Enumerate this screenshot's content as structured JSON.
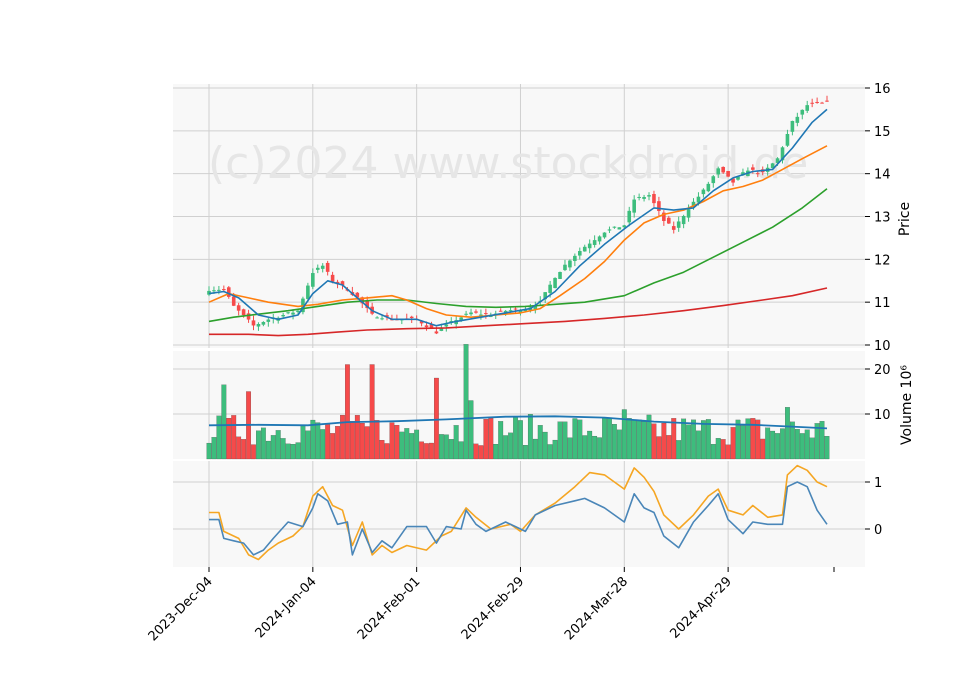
{
  "chart_data": {
    "type": "candlestick",
    "watermark": "(c)2024 www.stockdroid.de",
    "colors": {
      "up": "#3dbd7d",
      "down": "#f64a4a",
      "ma_fast": "#1f77b4",
      "ma_mid": "#ff7f0e",
      "ma_slow": "#2ca02c",
      "ma_long": "#d62728",
      "volume_ma": "#1f77b4",
      "osc_a": "#4a86b8",
      "osc_b": "#f5a623",
      "panel_bg": "#f8f8f8",
      "grid": "#d0d0d0"
    },
    "x_ticks": [
      {
        "i": 0,
        "label": "2023-Dec-04"
      },
      {
        "i": 21,
        "label": "2024-Jan-04"
      },
      {
        "i": 42,
        "label": "2024-Feb-01"
      },
      {
        "i": 63,
        "label": "2024-Feb-29"
      },
      {
        "i": 84,
        "label": "2024-Mar-28"
      },
      {
        "i": 105,
        "label": "2024-Apr-29"
      }
    ],
    "price_panel": {
      "ylabel": "Price",
      "ylim": [
        9.9,
        16.1
      ],
      "yticks": [
        10,
        11,
        12,
        13,
        14,
        15,
        16
      ],
      "close_anchors": [
        [
          0,
          11.3
        ],
        [
          3,
          11.3
        ],
        [
          5,
          10.9
        ],
        [
          9,
          10.45
        ],
        [
          12,
          10.6
        ],
        [
          18,
          10.8
        ],
        [
          21,
          11.7
        ],
        [
          23,
          11.85
        ],
        [
          25,
          11.5
        ],
        [
          28,
          11.3
        ],
        [
          30,
          11.1
        ],
        [
          33,
          10.7
        ],
        [
          38,
          10.6
        ],
        [
          42,
          10.6
        ],
        [
          46,
          10.3
        ],
        [
          50,
          10.6
        ],
        [
          53,
          10.75
        ],
        [
          57,
          10.7
        ],
        [
          60,
          10.8
        ],
        [
          64,
          10.85
        ],
        [
          67,
          11.0
        ],
        [
          70,
          11.6
        ],
        [
          73,
          12.0
        ],
        [
          76,
          12.3
        ],
        [
          80,
          12.65
        ],
        [
          84,
          12.8
        ],
        [
          86,
          13.4
        ],
        [
          89,
          13.5
        ],
        [
          92,
          12.9
        ],
        [
          94,
          12.7
        ],
        [
          97,
          13.2
        ],
        [
          100,
          13.6
        ],
        [
          103,
          14.1
        ],
        [
          106,
          13.8
        ],
        [
          109,
          14.1
        ],
        [
          112,
          14.0
        ],
        [
          115,
          14.35
        ],
        [
          118,
          15.2
        ],
        [
          121,
          15.6
        ],
        [
          125,
          15.65
        ]
      ],
      "ma_fast": [
        [
          0,
          11.2
        ],
        [
          3,
          11.25
        ],
        [
          6,
          11.1
        ],
        [
          10,
          10.7
        ],
        [
          14,
          10.6
        ],
        [
          18,
          10.7
        ],
        [
          21,
          11.2
        ],
        [
          24,
          11.5
        ],
        [
          27,
          11.4
        ],
        [
          30,
          11.1
        ],
        [
          33,
          10.8
        ],
        [
          37,
          10.6
        ],
        [
          42,
          10.6
        ],
        [
          46,
          10.45
        ],
        [
          50,
          10.55
        ],
        [
          55,
          10.65
        ],
        [
          60,
          10.75
        ],
        [
          65,
          10.85
        ],
        [
          70,
          11.25
        ],
        [
          75,
          11.85
        ],
        [
          80,
          12.35
        ],
        [
          85,
          12.8
        ],
        [
          90,
          13.2
        ],
        [
          94,
          13.15
        ],
        [
          98,
          13.2
        ],
        [
          102,
          13.6
        ],
        [
          106,
          13.9
        ],
        [
          110,
          14.05
        ],
        [
          114,
          14.1
        ],
        [
          118,
          14.6
        ],
        [
          122,
          15.2
        ],
        [
          125,
          15.5
        ]
      ],
      "ma_mid": [
        [
          0,
          11.0
        ],
        [
          4,
          11.2
        ],
        [
          8,
          11.1
        ],
        [
          12,
          11.0
        ],
        [
          18,
          10.9
        ],
        [
          22,
          10.95
        ],
        [
          27,
          11.05
        ],
        [
          32,
          11.1
        ],
        [
          37,
          11.15
        ],
        [
          40,
          11.05
        ],
        [
          44,
          10.85
        ],
        [
          48,
          10.7
        ],
        [
          53,
          10.65
        ],
        [
          58,
          10.7
        ],
        [
          63,
          10.75
        ],
        [
          67,
          10.85
        ],
        [
          71,
          11.15
        ],
        [
          76,
          11.55
        ],
        [
          80,
          11.95
        ],
        [
          84,
          12.45
        ],
        [
          88,
          12.85
        ],
        [
          92,
          13.05
        ],
        [
          96,
          13.15
        ],
        [
          100,
          13.35
        ],
        [
          104,
          13.6
        ],
        [
          108,
          13.7
        ],
        [
          112,
          13.85
        ],
        [
          116,
          14.1
        ],
        [
          120,
          14.35
        ],
        [
          125,
          14.65
        ]
      ],
      "ma_slow": [
        [
          0,
          10.55
        ],
        [
          5,
          10.65
        ],
        [
          10,
          10.72
        ],
        [
          16,
          10.8
        ],
        [
          22,
          10.9
        ],
        [
          28,
          11.0
        ],
        [
          34,
          11.05
        ],
        [
          40,
          11.05
        ],
        [
          46,
          10.97
        ],
        [
          52,
          10.9
        ],
        [
          58,
          10.88
        ],
        [
          64,
          10.9
        ],
        [
          70,
          10.95
        ],
        [
          76,
          11.0
        ],
        [
          84,
          11.15
        ],
        [
          90,
          11.45
        ],
        [
          96,
          11.7
        ],
        [
          102,
          12.05
        ],
        [
          108,
          12.4
        ],
        [
          114,
          12.75
        ],
        [
          120,
          13.2
        ],
        [
          125,
          13.65
        ]
      ],
      "ma_long": [
        [
          0,
          10.25
        ],
        [
          8,
          10.25
        ],
        [
          14,
          10.22
        ],
        [
          20,
          10.25
        ],
        [
          26,
          10.3
        ],
        [
          32,
          10.35
        ],
        [
          40,
          10.38
        ],
        [
          48,
          10.4
        ],
        [
          56,
          10.45
        ],
        [
          64,
          10.5
        ],
        [
          72,
          10.55
        ],
        [
          80,
          10.62
        ],
        [
          88,
          10.7
        ],
        [
          96,
          10.8
        ],
        [
          104,
          10.92
        ],
        [
          112,
          11.05
        ],
        [
          118,
          11.15
        ],
        [
          125,
          11.33
        ]
      ]
    },
    "volume_panel": {
      "ylabel": "Volume  10⁶",
      "ylim": [
        0,
        24
      ],
      "yticks": [
        10,
        20
      ],
      "spikes": [
        [
          3,
          16.5
        ],
        [
          8,
          15
        ],
        [
          28,
          21
        ],
        [
          33,
          21
        ],
        [
          46,
          18
        ],
        [
          52,
          25.5
        ],
        [
          53,
          13
        ],
        [
          84,
          11
        ],
        [
          117,
          11.5
        ]
      ],
      "ma": [
        [
          0,
          7.5
        ],
        [
          10,
          7.6
        ],
        [
          20,
          7.5
        ],
        [
          28,
          8.2
        ],
        [
          38,
          8.4
        ],
        [
          48,
          8.8
        ],
        [
          60,
          9.4
        ],
        [
          70,
          9.5
        ],
        [
          80,
          9.2
        ],
        [
          90,
          8.3
        ],
        [
          100,
          7.8
        ],
        [
          110,
          7.6
        ],
        [
          120,
          7.1
        ],
        [
          125,
          6.8
        ]
      ]
    },
    "osc_panel": {
      "ylim": [
        -0.8,
        1.5
      ],
      "yticks": [
        0,
        1
      ],
      "series_a": [
        [
          0,
          0.2
        ],
        [
          2,
          0.2
        ],
        [
          3,
          -0.2
        ],
        [
          5,
          -0.25
        ],
        [
          7,
          -0.3
        ],
        [
          9,
          -0.55
        ],
        [
          11,
          -0.45
        ],
        [
          13,
          -0.2
        ],
        [
          16,
          0.15
        ],
        [
          19,
          0.05
        ],
        [
          21,
          0.45
        ],
        [
          22,
          0.75
        ],
        [
          24,
          0.6
        ],
        [
          26,
          0.1
        ],
        [
          28,
          0.15
        ],
        [
          29,
          -0.55
        ],
        [
          31,
          0.0
        ],
        [
          33,
          -0.5
        ],
        [
          35,
          -0.25
        ],
        [
          37,
          -0.4
        ],
        [
          40,
          0.05
        ],
        [
          44,
          0.05
        ],
        [
          46,
          -0.3
        ],
        [
          48,
          0.05
        ],
        [
          51,
          0.0
        ],
        [
          52,
          0.4
        ],
        [
          54,
          0.1
        ],
        [
          56,
          -0.05
        ],
        [
          60,
          0.15
        ],
        [
          62,
          0.05
        ],
        [
          64,
          -0.05
        ],
        [
          66,
          0.3
        ],
        [
          70,
          0.5
        ],
        [
          74,
          0.6
        ],
        [
          76,
          0.65
        ],
        [
          80,
          0.45
        ],
        [
          84,
          0.15
        ],
        [
          86,
          0.75
        ],
        [
          88,
          0.45
        ],
        [
          90,
          0.35
        ],
        [
          92,
          -0.15
        ],
        [
          95,
          -0.4
        ],
        [
          98,
          0.15
        ],
        [
          101,
          0.5
        ],
        [
          103,
          0.75
        ],
        [
          105,
          0.2
        ],
        [
          108,
          -0.1
        ],
        [
          110,
          0.15
        ],
        [
          113,
          0.1
        ],
        [
          116,
          0.1
        ],
        [
          117,
          0.9
        ],
        [
          119,
          1.0
        ],
        [
          121,
          0.9
        ],
        [
          123,
          0.4
        ],
        [
          125,
          0.1
        ]
      ],
      "series_b": [
        [
          0,
          0.35
        ],
        [
          2,
          0.35
        ],
        [
          3,
          -0.05
        ],
        [
          6,
          -0.2
        ],
        [
          8,
          -0.55
        ],
        [
          10,
          -0.65
        ],
        [
          12,
          -0.45
        ],
        [
          14,
          -0.3
        ],
        [
          17,
          -0.15
        ],
        [
          19,
          0.05
        ],
        [
          21,
          0.7
        ],
        [
          23,
          0.9
        ],
        [
          25,
          0.5
        ],
        [
          27,
          0.4
        ],
        [
          29,
          -0.35
        ],
        [
          31,
          0.15
        ],
        [
          33,
          -0.55
        ],
        [
          35,
          -0.35
        ],
        [
          37,
          -0.5
        ],
        [
          40,
          -0.35
        ],
        [
          44,
          -0.45
        ],
        [
          47,
          -0.15
        ],
        [
          49,
          -0.05
        ],
        [
          52,
          0.45
        ],
        [
          54,
          0.25
        ],
        [
          57,
          0.0
        ],
        [
          61,
          0.1
        ],
        [
          63,
          -0.05
        ],
        [
          66,
          0.3
        ],
        [
          70,
          0.55
        ],
        [
          74,
          0.9
        ],
        [
          77,
          1.2
        ],
        [
          80,
          1.15
        ],
        [
          84,
          0.85
        ],
        [
          86,
          1.3
        ],
        [
          88,
          1.1
        ],
        [
          90,
          0.8
        ],
        [
          92,
          0.3
        ],
        [
          95,
          0.0
        ],
        [
          98,
          0.3
        ],
        [
          101,
          0.7
        ],
        [
          103,
          0.85
        ],
        [
          105,
          0.4
        ],
        [
          108,
          0.3
        ],
        [
          110,
          0.5
        ],
        [
          113,
          0.25
        ],
        [
          116,
          0.3
        ],
        [
          117,
          1.15
        ],
        [
          119,
          1.35
        ],
        [
          121,
          1.25
        ],
        [
          123,
          1.0
        ],
        [
          125,
          0.9
        ]
      ]
    }
  }
}
